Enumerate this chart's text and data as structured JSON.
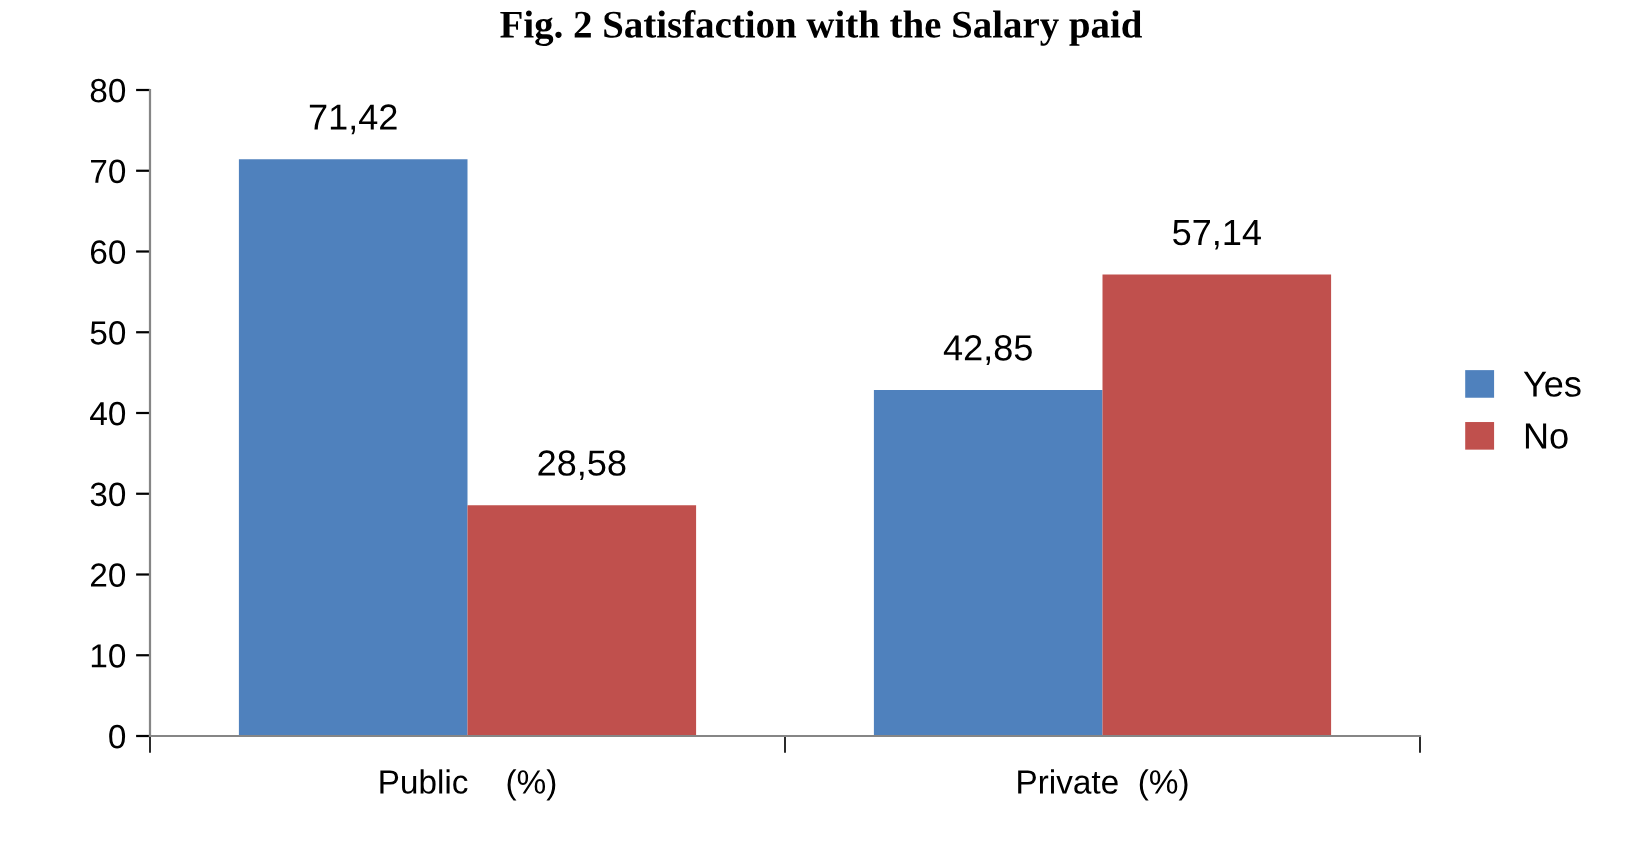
{
  "chart_data": {
    "type": "bar",
    "title": "Fig. 2 Satisfaction with the Salary paid",
    "categories": [
      "Public    (%)",
      "Private  (%)"
    ],
    "series": [
      {
        "name": "Yes",
        "color": "#4f81bd",
        "values": [
          71.42,
          42.85
        ],
        "value_labels": [
          "71,42",
          "42,85"
        ]
      },
      {
        "name": "No",
        "color": "#c0504d",
        "values": [
          28.58,
          57.14
        ],
        "value_labels": [
          "28,58",
          "57,14"
        ]
      }
    ],
    "ylim": [
      0,
      80
    ],
    "yticks": [
      0,
      10,
      20,
      30,
      40,
      50,
      60,
      70,
      80
    ],
    "grid": false,
    "legend": "right"
  }
}
